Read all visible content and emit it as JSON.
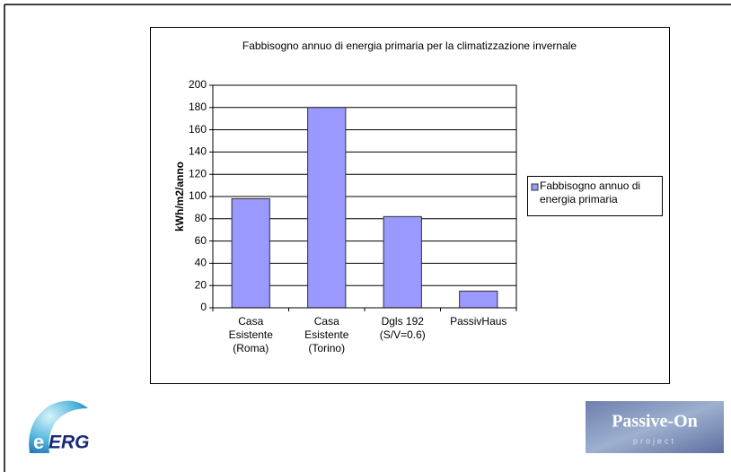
{
  "chart_data": {
    "type": "bar",
    "title": "Fabbisogno annuo di energia primaria per la climatizzazione invernale",
    "ylabel": "kWh/m2/anno",
    "categories": [
      "Casa Esistente (Roma)",
      "Casa Esistente (Torino)",
      "Dgls 192 (S/V=0.6)",
      "PassivHaus"
    ],
    "series": [
      {
        "name": "Fabbisogno annuo di energia primaria",
        "color": "#9999ff",
        "values": [
          98,
          180,
          82,
          15
        ]
      }
    ],
    "ylim": [
      0,
      200
    ],
    "yticks": [
      0,
      20,
      40,
      60,
      80,
      100,
      120,
      140,
      160,
      180,
      200
    ],
    "grid": true,
    "legend": "right"
  },
  "logos": {
    "left": {
      "letter": "e",
      "name": "ERG"
    },
    "right": {
      "name": "Passive-On",
      "sub": "project"
    }
  }
}
